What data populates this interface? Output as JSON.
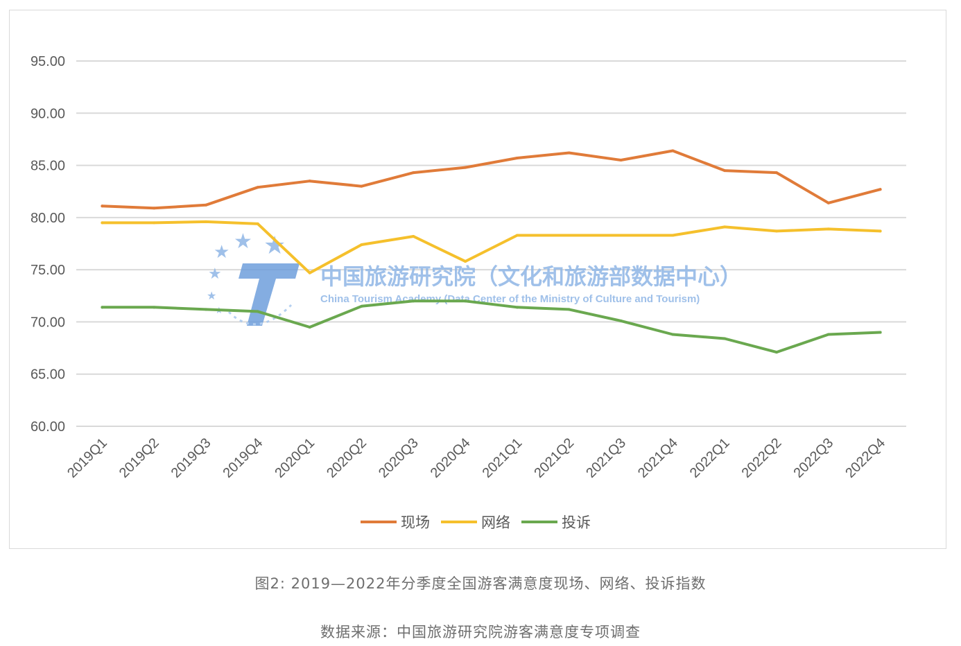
{
  "chart_data": {
    "type": "line",
    "categories": [
      "2019Q1",
      "2019Q2",
      "2019Q3",
      "2019Q4",
      "2020Q1",
      "2020Q2",
      "2020Q3",
      "2020Q4",
      "2021Q1",
      "2021Q2",
      "2021Q3",
      "2021Q4",
      "2022Q1",
      "2022Q2",
      "2022Q3",
      "2022Q4"
    ],
    "series": [
      {
        "name": "现场",
        "color": "#e07b39",
        "values": [
          81.1,
          80.9,
          81.2,
          82.9,
          83.5,
          83.0,
          84.3,
          84.8,
          85.7,
          86.2,
          85.5,
          86.4,
          84.5,
          84.3,
          81.4,
          82.7
        ]
      },
      {
        "name": "网络",
        "color": "#f5c02c",
        "values": [
          79.5,
          79.5,
          79.6,
          79.4,
          74.7,
          77.4,
          78.2,
          75.8,
          78.3,
          78.3,
          78.3,
          78.3,
          79.1,
          78.7,
          78.9,
          78.7
        ]
      },
      {
        "name": "投诉",
        "color": "#6aa84f",
        "values": [
          71.4,
          71.4,
          71.2,
          71.0,
          69.5,
          71.5,
          72.0,
          72.0,
          71.4,
          71.2,
          70.1,
          68.8,
          68.4,
          67.1,
          68.8,
          69.0
        ]
      }
    ],
    "y_ticks": [
      "60.00",
      "65.00",
      "70.00",
      "75.00",
      "80.00",
      "85.00",
      "90.00",
      "95.00"
    ],
    "ylim": [
      60,
      95
    ],
    "grid": true,
    "legend_position": "bottom-center"
  },
  "watermark": {
    "cn": "中国旅游研究院（文化和旅游部数据中心）",
    "en": "China Tourism Academy (Data Center of the Ministry of Culture and Tourism)"
  },
  "caption": "图2: 2019—2022年分季度全国游客满意度现场、网络、投诉指数",
  "source": "数据来源：中国旅游研究院游客满意度专项调查"
}
